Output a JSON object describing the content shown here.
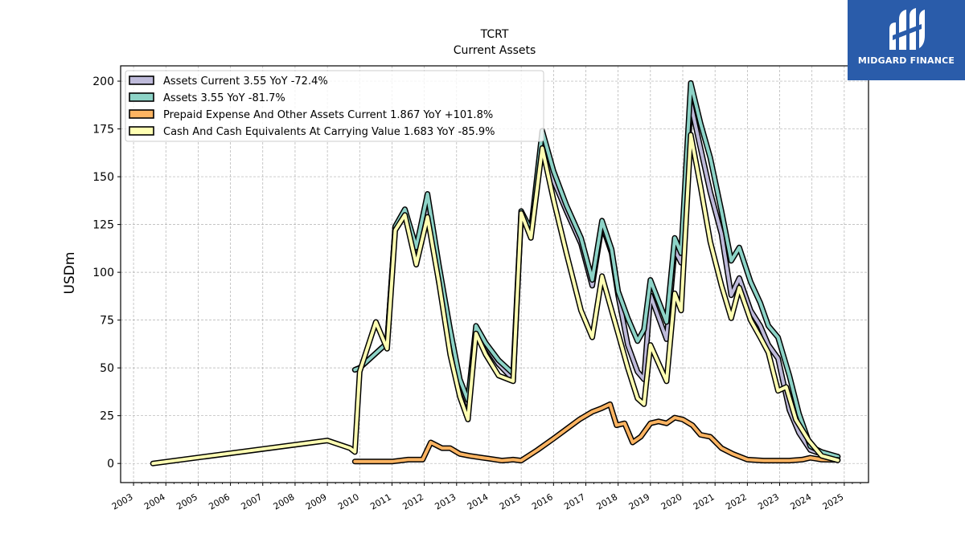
{
  "logo": {
    "text": "MIDGARD FINANCE"
  },
  "chart_data": {
    "type": "line",
    "title": "TCRT",
    "subtitle": "Current  Assets",
    "ylabel": "USDm",
    "xlabel": "",
    "ylim": [
      -10,
      208
    ],
    "xlim": [
      2002.6,
      2025.75
    ],
    "yticks": [
      0,
      25,
      50,
      75,
      100,
      125,
      150,
      175,
      200
    ],
    "xticks": [
      "2003",
      "2004",
      "2005",
      "2006",
      "2007",
      "2008",
      "2009",
      "2010",
      "2011",
      "2012",
      "2013",
      "2014",
      "2015",
      "2016",
      "2017",
      "2018",
      "2019",
      "2020",
      "2021",
      "2022",
      "2023",
      "2024",
      "2025"
    ],
    "grid": true,
    "legend_position": "top-left",
    "colors": {
      "assets_current": "#bebada",
      "assets": "#8dd3c7",
      "prepaid": "#fdb462",
      "cash": "#ffffb3",
      "outline": "#000000",
      "logo_bg": "#2a5caa"
    },
    "series": [
      {
        "key": "assets_current",
        "name": "Assets Current  3.55 YoY -72.4%",
        "color": "#bebada",
        "points": [
          [
            2009.85,
            49
          ],
          [
            2010.0,
            50
          ],
          [
            2010.85,
            63
          ],
          [
            2011.1,
            124
          ],
          [
            2011.4,
            131
          ],
          [
            2011.75,
            107
          ],
          [
            2012.1,
            135
          ],
          [
            2012.45,
            95
          ],
          [
            2012.8,
            67
          ],
          [
            2013.1,
            42
          ],
          [
            2013.35,
            31
          ],
          [
            2013.6,
            70
          ],
          [
            2013.9,
            62
          ],
          [
            2014.3,
            52
          ],
          [
            2014.75,
            44
          ],
          [
            2015.0,
            130
          ],
          [
            2015.3,
            120
          ],
          [
            2015.65,
            168
          ],
          [
            2016.0,
            148
          ],
          [
            2016.4,
            132
          ],
          [
            2016.85,
            115
          ],
          [
            2017.2,
            93
          ],
          [
            2017.5,
            125
          ],
          [
            2017.8,
            110
          ],
          [
            2018.0,
            88
          ],
          [
            2018.3,
            62
          ],
          [
            2018.6,
            48
          ],
          [
            2018.8,
            44
          ],
          [
            2019.0,
            88
          ],
          [
            2019.5,
            65
          ],
          [
            2019.75,
            112
          ],
          [
            2019.95,
            105
          ],
          [
            2020.25,
            188
          ],
          [
            2020.55,
            165
          ],
          [
            2020.85,
            142
          ],
          [
            2021.2,
            120
          ],
          [
            2021.5,
            88
          ],
          [
            2021.75,
            97
          ],
          [
            2022.1,
            80
          ],
          [
            2022.4,
            72
          ],
          [
            2022.65,
            62
          ],
          [
            2022.95,
            55
          ],
          [
            2023.3,
            28
          ],
          [
            2023.6,
            16
          ],
          [
            2023.95,
            7
          ],
          [
            2024.3,
            5
          ],
          [
            2024.8,
            3.55
          ]
        ]
      },
      {
        "key": "assets",
        "name": "Assets  3.55 YoY -81.7%",
        "color": "#8dd3c7",
        "points": [
          [
            2009.85,
            49
          ],
          [
            2010.0,
            50
          ],
          [
            2010.85,
            63
          ],
          [
            2011.1,
            124
          ],
          [
            2011.4,
            133
          ],
          [
            2011.75,
            113
          ],
          [
            2012.1,
            141
          ],
          [
            2012.45,
            104
          ],
          [
            2012.8,
            70
          ],
          [
            2013.1,
            44
          ],
          [
            2013.35,
            33
          ],
          [
            2013.6,
            72
          ],
          [
            2013.9,
            63
          ],
          [
            2014.3,
            54
          ],
          [
            2014.75,
            47
          ],
          [
            2015.0,
            132
          ],
          [
            2015.3,
            122
          ],
          [
            2015.65,
            174
          ],
          [
            2016.0,
            153
          ],
          [
            2016.4,
            135
          ],
          [
            2016.85,
            118
          ],
          [
            2017.2,
            96
          ],
          [
            2017.5,
            127
          ],
          [
            2017.8,
            112
          ],
          [
            2018.0,
            90
          ],
          [
            2018.3,
            76
          ],
          [
            2018.6,
            64
          ],
          [
            2018.8,
            70
          ],
          [
            2019.0,
            96
          ],
          [
            2019.5,
            74
          ],
          [
            2019.75,
            118
          ],
          [
            2019.95,
            110
          ],
          [
            2020.25,
            199
          ],
          [
            2020.55,
            178
          ],
          [
            2020.85,
            160
          ],
          [
            2021.2,
            132
          ],
          [
            2021.5,
            106
          ],
          [
            2021.75,
            113
          ],
          [
            2022.1,
            95
          ],
          [
            2022.4,
            84
          ],
          [
            2022.65,
            72
          ],
          [
            2022.95,
            66
          ],
          [
            2023.3,
            46
          ],
          [
            2023.6,
            26
          ],
          [
            2023.95,
            9
          ],
          [
            2024.3,
            6
          ],
          [
            2024.8,
            3.55
          ]
        ]
      },
      {
        "key": "prepaid",
        "name": "Prepaid Expense And Other Assets Current  1.867 YoY +101.8%",
        "color": "#fdb462",
        "points": [
          [
            2009.85,
            1
          ],
          [
            2010.5,
            1
          ],
          [
            2011.0,
            1
          ],
          [
            2011.5,
            2
          ],
          [
            2011.95,
            2
          ],
          [
            2012.2,
            11
          ],
          [
            2012.55,
            8
          ],
          [
            2012.8,
            8
          ],
          [
            2013.1,
            5
          ],
          [
            2013.4,
            4
          ],
          [
            2013.8,
            3
          ],
          [
            2014.0,
            2.5
          ],
          [
            2014.4,
            1.5
          ],
          [
            2014.75,
            2
          ],
          [
            2015.0,
            1.5
          ],
          [
            2015.5,
            7
          ],
          [
            2016.0,
            13
          ],
          [
            2016.4,
            18
          ],
          [
            2016.8,
            23
          ],
          [
            2017.2,
            27
          ],
          [
            2017.5,
            29
          ],
          [
            2017.75,
            31
          ],
          [
            2017.95,
            20
          ],
          [
            2018.2,
            21
          ],
          [
            2018.45,
            11
          ],
          [
            2018.7,
            14
          ],
          [
            2019.0,
            21
          ],
          [
            2019.25,
            22
          ],
          [
            2019.5,
            21
          ],
          [
            2019.75,
            24
          ],
          [
            2020.0,
            23
          ],
          [
            2020.3,
            20
          ],
          [
            2020.55,
            15
          ],
          [
            2020.85,
            14
          ],
          [
            2021.2,
            8
          ],
          [
            2021.55,
            5
          ],
          [
            2022.0,
            2
          ],
          [
            2022.5,
            1.5
          ],
          [
            2022.9,
            1.5
          ],
          [
            2023.3,
            1.5
          ],
          [
            2023.7,
            2
          ],
          [
            2023.95,
            3
          ],
          [
            2024.3,
            2
          ],
          [
            2024.8,
            1.867
          ]
        ]
      },
      {
        "key": "cash",
        "name": "Cash And Cash Equivalents At Carrying Value  1.683 YoY -85.9%",
        "color": "#ffffb3",
        "points": [
          [
            2003.6,
            0
          ],
          [
            2009.0,
            12
          ],
          [
            2009.7,
            8
          ],
          [
            2009.85,
            6
          ],
          [
            2010.0,
            48
          ],
          [
            2010.5,
            74
          ],
          [
            2010.85,
            60
          ],
          [
            2011.1,
            122
          ],
          [
            2011.4,
            130
          ],
          [
            2011.75,
            104
          ],
          [
            2012.1,
            129
          ],
          [
            2012.45,
            95
          ],
          [
            2012.8,
            57
          ],
          [
            2013.1,
            35
          ],
          [
            2013.35,
            23
          ],
          [
            2013.6,
            68
          ],
          [
            2013.9,
            57
          ],
          [
            2014.3,
            46
          ],
          [
            2014.75,
            43
          ],
          [
            2015.0,
            131
          ],
          [
            2015.3,
            118
          ],
          [
            2015.65,
            165
          ],
          [
            2016.0,
            138
          ],
          [
            2016.4,
            110
          ],
          [
            2016.85,
            80
          ],
          [
            2017.2,
            66
          ],
          [
            2017.5,
            98
          ],
          [
            2017.8,
            80
          ],
          [
            2018.0,
            68
          ],
          [
            2018.3,
            50
          ],
          [
            2018.6,
            34
          ],
          [
            2018.8,
            31
          ],
          [
            2019.0,
            62
          ],
          [
            2019.5,
            43
          ],
          [
            2019.75,
            89
          ],
          [
            2019.95,
            80
          ],
          [
            2020.25,
            172
          ],
          [
            2020.55,
            145
          ],
          [
            2020.85,
            116
          ],
          [
            2021.2,
            93
          ],
          [
            2021.5,
            76
          ],
          [
            2021.75,
            92
          ],
          [
            2022.1,
            75
          ],
          [
            2022.4,
            66
          ],
          [
            2022.65,
            58
          ],
          [
            2022.95,
            38
          ],
          [
            2023.2,
            40
          ],
          [
            2023.5,
            23
          ],
          [
            2023.9,
            12
          ],
          [
            2024.3,
            4
          ],
          [
            2024.8,
            1.683
          ]
        ]
      }
    ]
  }
}
